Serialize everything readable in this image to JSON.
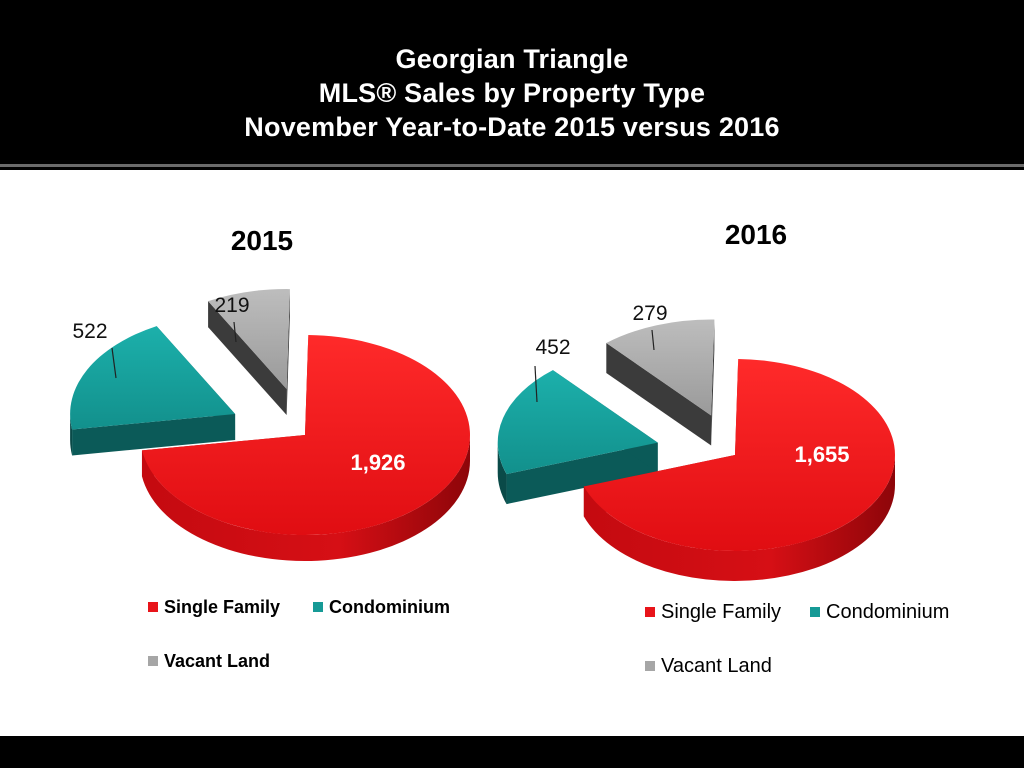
{
  "slide": {
    "title_lines": [
      "Georgian Triangle",
      "MLS® Sales by Property Type",
      "November Year-to-Date 2015 versus 2016"
    ]
  },
  "colors": {
    "single_family": "#e8141a",
    "condominium": "#169a96",
    "vacant_land": "#a6a6a6"
  },
  "chart_data": [
    {
      "type": "pie",
      "title": "2015",
      "categories": [
        "Single Family",
        "Condominium",
        "Vacant Land"
      ],
      "values": [
        1926,
        522,
        219
      ],
      "labels": [
        "1,926",
        "522",
        "219"
      ],
      "exploded": true,
      "legend": "bottom"
    },
    {
      "type": "pie",
      "title": "2016",
      "categories": [
        "Single Family",
        "Condominium",
        "Vacant Land"
      ],
      "values": [
        1655,
        452,
        279
      ],
      "labels": [
        "1,655",
        "452",
        "279"
      ],
      "exploded": true,
      "legend": "bottom"
    }
  ]
}
